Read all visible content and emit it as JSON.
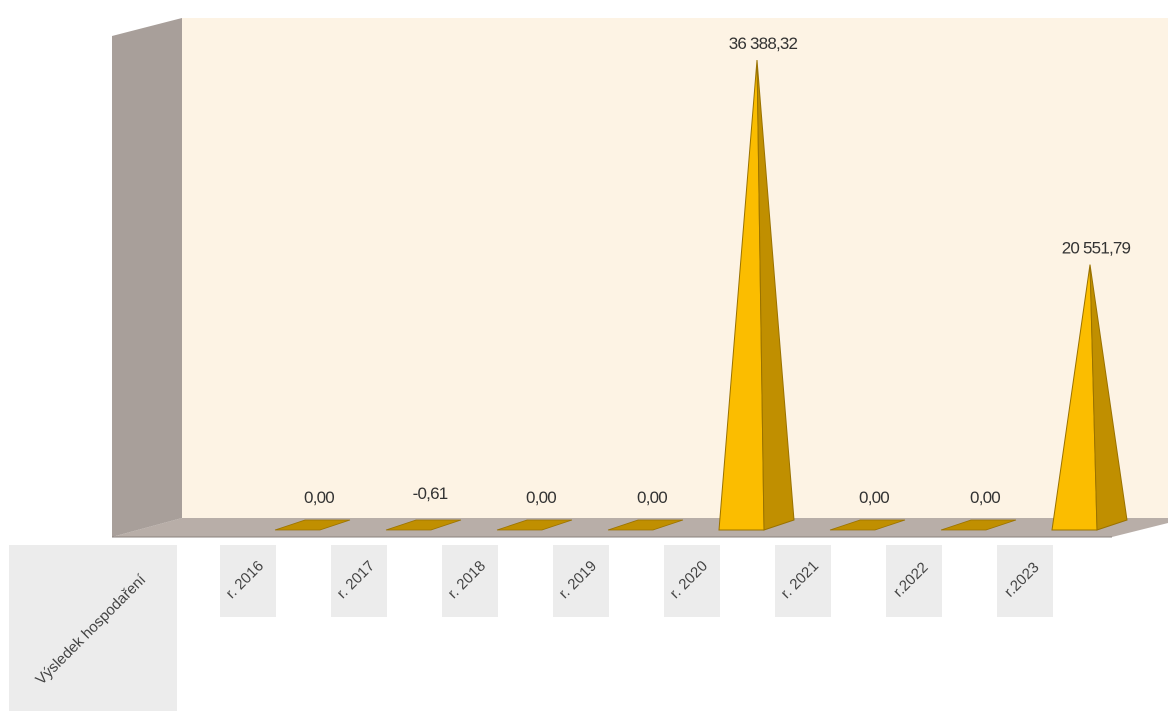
{
  "colors": {
    "back_wall": "#fdf3e4",
    "side_wall": "#a89f9a",
    "floor": "#b8aea8",
    "bar_front": "#fbbd00",
    "bar_side": "#c08f00",
    "bar_edge": "#9a7200",
    "label_bg": "#ececec"
  },
  "chart_data": {
    "type": "bar",
    "shape": "3d-pyramid",
    "row_label": "Výsledek hospodaření",
    "categories": [
      "r. 2016",
      "r. 2017",
      "r. 2018",
      "r. 2019",
      "r. 2020",
      "r. 2021",
      "r.2022",
      "r.2023"
    ],
    "values": [
      0.0,
      -0.61,
      0.0,
      0.0,
      36388.32,
      0.0,
      0.0,
      20551.79
    ],
    "data_labels": [
      "0,00",
      "-0,61",
      "0,00",
      "0,00",
      "36 388,32",
      "0,00",
      "0,00",
      "20 551,79"
    ],
    "ylim": [
      0,
      36388.32
    ],
    "grid": false,
    "legend": "none"
  }
}
